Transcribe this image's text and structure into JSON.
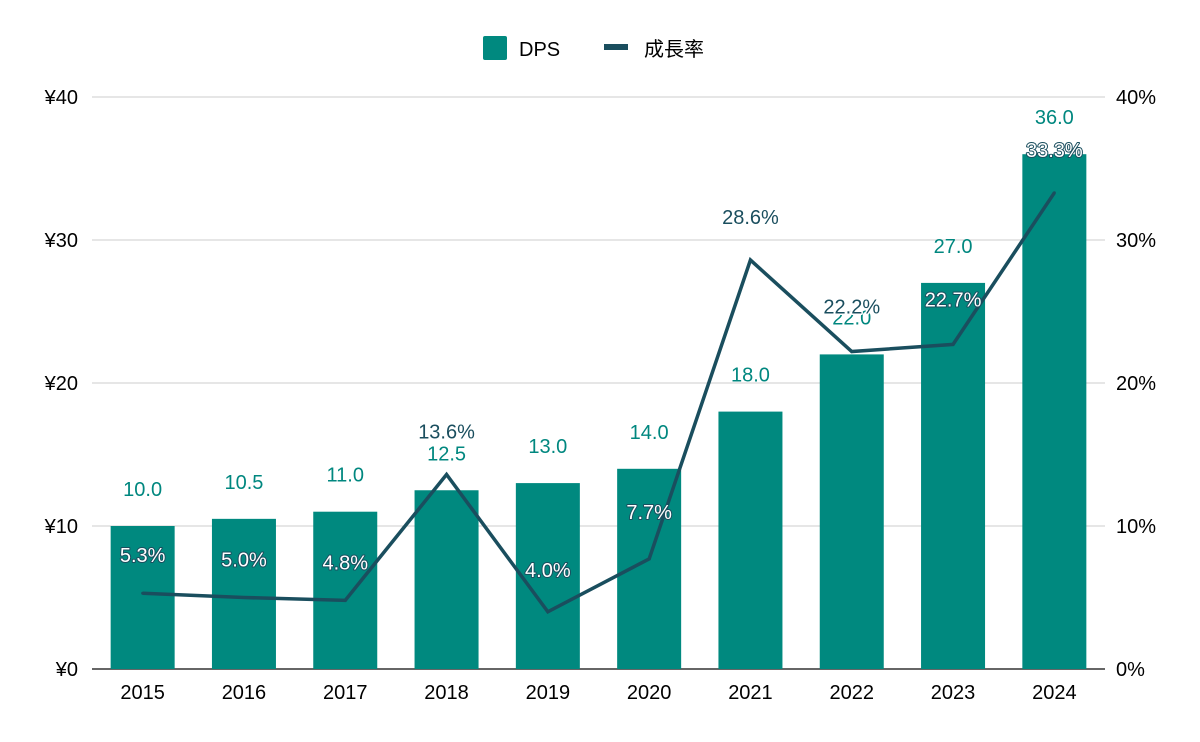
{
  "chart_data": {
    "type": "bar",
    "categories": [
      "2015",
      "2016",
      "2017",
      "2018",
      "2019",
      "2020",
      "2021",
      "2022",
      "2023",
      "2024"
    ],
    "series": [
      {
        "name": "DPS",
        "type": "bar",
        "axis": "left",
        "color": "#00897f",
        "values": [
          10.0,
          10.5,
          11.0,
          12.5,
          13.0,
          14.0,
          18.0,
          22.0,
          27.0,
          36.0
        ],
        "labels": [
          "10.0",
          "10.5",
          "11.0",
          "12.5",
          "13.0",
          "14.0",
          "18.0",
          "22.0",
          "27.0",
          "36.0"
        ]
      },
      {
        "name": "成長率",
        "type": "line",
        "axis": "right",
        "color": "#1a4e5e",
        "values": [
          5.3,
          5.0,
          4.8,
          13.6,
          4.0,
          7.7,
          28.6,
          22.2,
          22.7,
          33.3
        ],
        "labels": [
          "5.3%",
          "5.0%",
          "4.8%",
          "13.6%",
          "4.0%",
          "7.7%",
          "28.6%",
          "22.2%",
          "22.7%",
          "33.3%"
        ]
      }
    ],
    "y_left": {
      "range": [
        0,
        40
      ],
      "ticks": [
        0,
        10,
        20,
        30,
        40
      ],
      "tick_labels": [
        "¥0",
        "¥10",
        "¥20",
        "¥30",
        "¥40"
      ]
    },
    "y_right": {
      "range": [
        0,
        40
      ],
      "ticks": [
        0,
        10,
        20,
        30,
        40
      ],
      "tick_labels": [
        "0%",
        "10%",
        "20%",
        "30%",
        "40%"
      ]
    },
    "grid": true,
    "legend": "top-center"
  }
}
